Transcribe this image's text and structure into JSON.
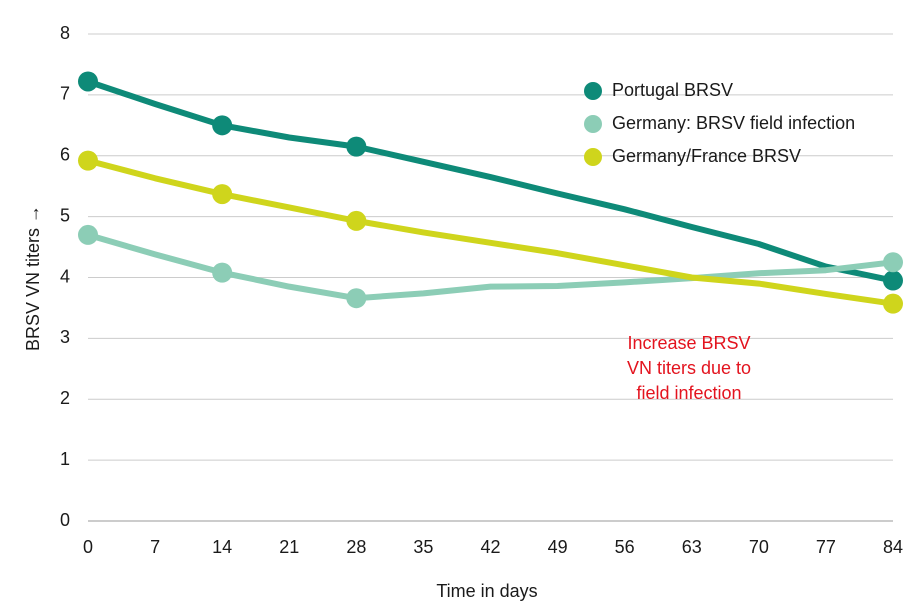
{
  "chart_data": {
    "type": "line",
    "x_label": "Time in days",
    "y_label": "BRSV VN titers →",
    "x": [
      0,
      7,
      14,
      21,
      28,
      35,
      42,
      49,
      56,
      63,
      70,
      77,
      84
    ],
    "marker_x": [
      0,
      14,
      28,
      84
    ],
    "series": [
      {
        "name": "Portugal BRSV",
        "color": "#0e8a78",
        "values": [
          7.22,
          6.85,
          6.5,
          6.3,
          6.15,
          5.9,
          5.65,
          5.38,
          5.12,
          4.83,
          4.55,
          4.18,
          3.95
        ]
      },
      {
        "name": "Germany: BRSV field infection",
        "color": "#8ccdb6",
        "values": [
          4.7,
          4.38,
          4.08,
          3.85,
          3.66,
          3.74,
          3.85,
          3.86,
          3.92,
          3.99,
          4.07,
          4.12,
          4.25
        ]
      },
      {
        "name": "Germany/France BRSV",
        "color": "#cfd51c",
        "values": [
          5.92,
          5.63,
          5.37,
          5.15,
          4.93,
          4.74,
          4.57,
          4.4,
          4.2,
          4.0,
          3.9,
          3.73,
          3.57
        ]
      }
    ],
    "annotation": {
      "lines": [
        "Increase BRSV",
        "VN titers due to",
        "field infection"
      ],
      "color": "#e3131e"
    },
    "xlim": [
      0,
      84
    ],
    "xticks": [
      0,
      7,
      14,
      21,
      28,
      35,
      42,
      49,
      56,
      63,
      70,
      77,
      84
    ],
    "ylim": [
      0,
      8
    ],
    "yticks": [
      0,
      1,
      2,
      3,
      4,
      5,
      6,
      7,
      8
    ],
    "grid": true,
    "legend": "upper right"
  }
}
